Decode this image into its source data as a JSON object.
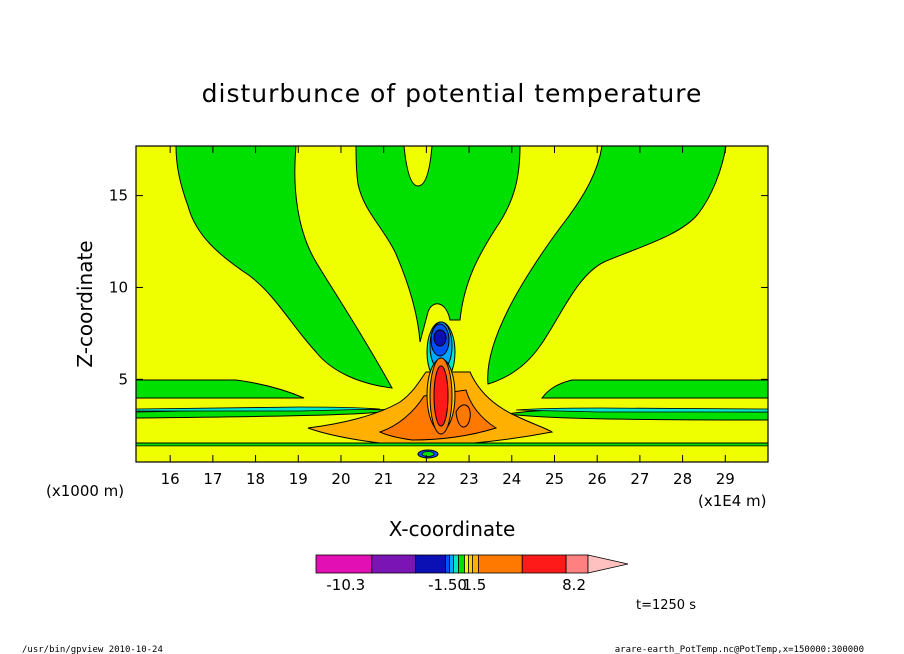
{
  "chart_data": {
    "type": "contour",
    "title": "disturbunce of potential temperature",
    "xlabel": "X-coordinate",
    "ylabel": "Z-coordinate",
    "x_unit": "(x1E4 m)",
    "y_unit": "(x1000 m)",
    "xlim": [
      15.2,
      30
    ],
    "ylim": [
      0.5,
      17.7
    ],
    "x_ticks": [
      16,
      17,
      18,
      19,
      20,
      21,
      22,
      23,
      24,
      25,
      26,
      27,
      28,
      29
    ],
    "y_ticks": [
      5,
      10,
      15
    ],
    "colorbar": {
      "colors": [
        "#e20fb4",
        "#7a14b4",
        "#0a10b4",
        "#0050ff",
        "#00a8ff",
        "#00e8c8",
        "#00e000",
        "#f0ff00",
        "#ffd000",
        "#ffb000",
        "#ff7800",
        "#ff1a1a",
        "#ff8080",
        "#ffc0c0"
      ],
      "labels": [
        "-10.3",
        "-1.50",
        "1.5",
        "8.2"
      ]
    },
    "time_label": "t=1250 s"
  },
  "footer": {
    "left": "/usr/bin/gpview   2010-10-24",
    "right": "arare-earth_PotTemp.nc@PotTemp,x=150000:300000"
  }
}
